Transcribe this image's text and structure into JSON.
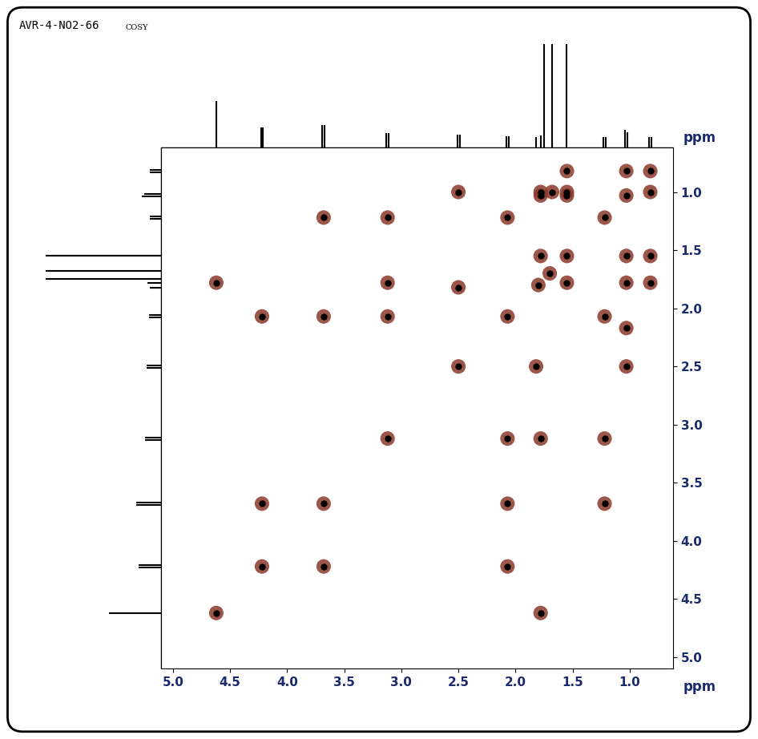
{
  "chart_data": {
    "type": "scatter",
    "title": "AVR-4-NO2-66",
    "subtitle": "COSY",
    "x_label": "ppm",
    "y_label": "ppm",
    "color": "#8b3a2a",
    "marker": "o",
    "x": [
      4.62,
      4.22,
      3.68,
      3.12,
      2.5,
      2.07,
      1.8,
      1.7,
      1.55,
      1.22,
      1.03,
      0.82,
      4.62,
      1.78,
      4.22,
      2.07,
      4.22,
      3.68,
      3.68,
      2.07,
      3.68,
      1.22,
      3.12,
      2.07,
      3.12,
      1.22,
      3.12,
      1.78,
      2.5,
      1.03,
      2.5,
      1.82,
      2.07,
      1.22,
      1.03,
      1.55,
      1.03,
      1.78,
      0.82,
      1.55,
      0.82,
      0.82,
      1.03,
      1.55,
      1.78,
      1.78,
      1.68,
      1.55,
      1.03
    ],
    "y": [
      4.62,
      4.22,
      3.68,
      3.12,
      2.5,
      2.07,
      1.8,
      1.7,
      1.55,
      1.22,
      1.03,
      0.82,
      1.78,
      4.62,
      2.07,
      4.22,
      3.68,
      4.22,
      2.07,
      3.68,
      1.22,
      3.68,
      2.07,
      3.12,
      1.22,
      3.12,
      1.78,
      3.12,
      1.0,
      2.5,
      1.82,
      2.5,
      1.22,
      2.07,
      1.55,
      1.03,
      1.78,
      1.03,
      1.55,
      0.82,
      1.78,
      1.0,
      0.82,
      1.78,
      1.55,
      1.0,
      1.0,
      1.0,
      2.17
    ],
    "xlim": [
      5.1,
      0.62
    ],
    "ylim": [
      5.1,
      0.62
    ],
    "xticks": [
      {
        "value": 5,
        "label": "5.0"
      },
      {
        "value": 4.5,
        "label": "4.5"
      },
      {
        "value": 4,
        "label": "4.0"
      },
      {
        "value": 3.5,
        "label": "3.5"
      },
      {
        "value": 3,
        "label": "3.0"
      },
      {
        "value": 2.5,
        "label": "2.5"
      },
      {
        "value": 2,
        "label": "2.0"
      },
      {
        "value": 1.5,
        "label": "1.5"
      },
      {
        "value": 1,
        "label": "1.0"
      }
    ],
    "yticks": [
      {
        "value": 1,
        "label": "1.0"
      },
      {
        "value": 1.5,
        "label": "1.5"
      },
      {
        "value": 2,
        "label": "2.0"
      },
      {
        "value": 2.5,
        "label": "2.5"
      },
      {
        "value": 3,
        "label": "3.0"
      },
      {
        "value": 3.5,
        "label": "3.5"
      },
      {
        "value": 4,
        "label": "4.0"
      },
      {
        "value": 4.5,
        "label": "4.5"
      },
      {
        "value": 5,
        "label": "5.0"
      }
    ],
    "grid": false,
    "projection": {
      "shifts": [
        4.62,
        4.23,
        4.21,
        3.69,
        3.67,
        3.13,
        3.11,
        2.51,
        2.49,
        2.08,
        2.06,
        1.82,
        1.78,
        1.75,
        1.68,
        1.55,
        1.23,
        1.21,
        1.04,
        1.02,
        0.83,
        0.81
      ],
      "intensities": [
        0.45,
        0.2,
        0.2,
        0.22,
        0.22,
        0.14,
        0.14,
        0.13,
        0.13,
        0.11,
        0.11,
        0.1,
        0.12,
        1.5,
        1.5,
        1.5,
        0.1,
        0.1,
        0.17,
        0.15,
        0.1,
        0.1
      ],
      "ylim": [
        0,
        1
      ]
    }
  }
}
